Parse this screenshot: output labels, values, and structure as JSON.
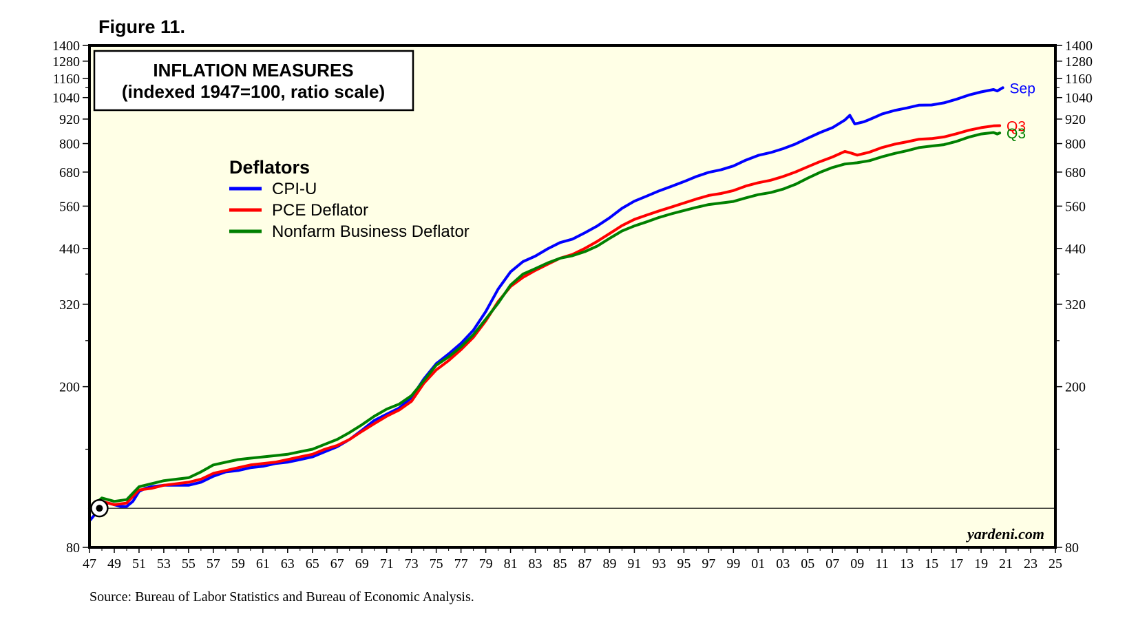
{
  "figure_label": "Figure 11.",
  "source_note": "Source: Bureau of Labor Statistics and Bureau of Economic Analysis.",
  "watermark": "yardeni.com",
  "chart_data": {
    "type": "line",
    "title_lines": [
      "INFLATION MEASURES",
      "(indexed 1947=100, ratio scale)"
    ],
    "legend_title": "Deflators",
    "scale": "log",
    "xlim": [
      1947,
      2025
    ],
    "ylim": [
      80,
      1400
    ],
    "reference_line": 100,
    "base_marker": {
      "x": 1947.8,
      "y": 100
    },
    "y_ticks": [
      {
        "value": 80,
        "label": "80"
      },
      {
        "value": 200,
        "label": "200"
      },
      {
        "value": 320,
        "label": "320"
      },
      {
        "value": 440,
        "label": "440"
      },
      {
        "value": 560,
        "label": "560"
      },
      {
        "value": 680,
        "label": "680"
      },
      {
        "value": 800,
        "label": "800"
      },
      {
        "value": 920,
        "label": "920"
      },
      {
        "value": 1040,
        "label": "1040"
      },
      {
        "value": 1160,
        "label": "1160"
      },
      {
        "value": 1280,
        "label": "1280"
      },
      {
        "value": 1400,
        "label": "1400"
      }
    ],
    "y_minor_ticks": [
      140,
      260,
      380,
      1100
    ],
    "x_ticks": [
      {
        "value": 1947,
        "label": "47"
      },
      {
        "value": 1949,
        "label": "49"
      },
      {
        "value": 1951,
        "label": "51"
      },
      {
        "value": 1953,
        "label": "53"
      },
      {
        "value": 1955,
        "label": "55"
      },
      {
        "value": 1957,
        "label": "57"
      },
      {
        "value": 1959,
        "label": "59"
      },
      {
        "value": 1961,
        "label": "61"
      },
      {
        "value": 1963,
        "label": "63"
      },
      {
        "value": 1965,
        "label": "65"
      },
      {
        "value": 1967,
        "label": "67"
      },
      {
        "value": 1969,
        "label": "69"
      },
      {
        "value": 1971,
        "label": "71"
      },
      {
        "value": 1973,
        "label": "73"
      },
      {
        "value": 1975,
        "label": "75"
      },
      {
        "value": 1977,
        "label": "77"
      },
      {
        "value": 1979,
        "label": "79"
      },
      {
        "value": 1981,
        "label": "81"
      },
      {
        "value": 1983,
        "label": "83"
      },
      {
        "value": 1985,
        "label": "85"
      },
      {
        "value": 1987,
        "label": "87"
      },
      {
        "value": 1989,
        "label": "89"
      },
      {
        "value": 1991,
        "label": "91"
      },
      {
        "value": 1993,
        "label": "93"
      },
      {
        "value": 1995,
        "label": "95"
      },
      {
        "value": 1997,
        "label": "97"
      },
      {
        "value": 1999,
        "label": "99"
      },
      {
        "value": 2001,
        "label": "01"
      },
      {
        "value": 2003,
        "label": "03"
      },
      {
        "value": 2005,
        "label": "05"
      },
      {
        "value": 2007,
        "label": "07"
      },
      {
        "value": 2009,
        "label": "09"
      },
      {
        "value": 2011,
        "label": "11"
      },
      {
        "value": 2013,
        "label": "13"
      },
      {
        "value": 2015,
        "label": "15"
      },
      {
        "value": 2017,
        "label": "17"
      },
      {
        "value": 2019,
        "label": "19"
      },
      {
        "value": 2021,
        "label": "21"
      },
      {
        "value": 2023,
        "label": "23"
      },
      {
        "value": 2025,
        "label": "25"
      }
    ],
    "series": [
      {
        "name": "CPI-U",
        "color": "#0000ff",
        "end_label": "Sep",
        "points": [
          [
            1947.0,
            93
          ],
          [
            1947.5,
            97
          ],
          [
            1948.0,
            101
          ],
          [
            1948.5,
            103
          ],
          [
            1949.0,
            102
          ],
          [
            1949.5,
            101
          ],
          [
            1950.0,
            101
          ],
          [
            1950.5,
            104
          ],
          [
            1951.0,
            110
          ],
          [
            1951.5,
            112
          ],
          [
            1952.0,
            113
          ],
          [
            1953.0,
            114
          ],
          [
            1954.0,
            114
          ],
          [
            1955.0,
            114
          ],
          [
            1956.0,
            116
          ],
          [
            1957.0,
            120
          ],
          [
            1958.0,
            123
          ],
          [
            1959.0,
            124
          ],
          [
            1960.0,
            126
          ],
          [
            1961.0,
            127
          ],
          [
            1962.0,
            129
          ],
          [
            1963.0,
            130
          ],
          [
            1964.0,
            132
          ],
          [
            1965.0,
            134
          ],
          [
            1966.0,
            138
          ],
          [
            1967.0,
            142
          ],
          [
            1968.0,
            148
          ],
          [
            1969.0,
            156
          ],
          [
            1970.0,
            165
          ],
          [
            1971.0,
            171
          ],
          [
            1972.0,
            177
          ],
          [
            1973.0,
            188
          ],
          [
            1974.0,
            209
          ],
          [
            1975.0,
            228
          ],
          [
            1976.0,
            241
          ],
          [
            1977.0,
            256
          ],
          [
            1978.0,
            276
          ],
          [
            1979.0,
            307
          ],
          [
            1980.0,
            349
          ],
          [
            1981.0,
            385
          ],
          [
            1982.0,
            408
          ],
          [
            1983.0,
            421
          ],
          [
            1984.0,
            439
          ],
          [
            1985.0,
            455
          ],
          [
            1986.0,
            464
          ],
          [
            1987.0,
            481
          ],
          [
            1988.0,
            500
          ],
          [
            1989.0,
            524
          ],
          [
            1990.0,
            553
          ],
          [
            1991.0,
            576
          ],
          [
            1992.0,
            593
          ],
          [
            1993.0,
            611
          ],
          [
            1994.0,
            627
          ],
          [
            1995.0,
            644
          ],
          [
            1996.0,
            663
          ],
          [
            1997.0,
            679
          ],
          [
            1998.0,
            689
          ],
          [
            1999.0,
            704
          ],
          [
            2000.0,
            728
          ],
          [
            2001.0,
            748
          ],
          [
            2002.0,
            760
          ],
          [
            2003.0,
            777
          ],
          [
            2004.0,
            798
          ],
          [
            2005.0,
            825
          ],
          [
            2006.0,
            852
          ],
          [
            2007.0,
            876
          ],
          [
            2008.0,
            915
          ],
          [
            2008.4,
            940
          ],
          [
            2008.8,
            895
          ],
          [
            2009.5,
            905
          ],
          [
            2010.0,
            918
          ],
          [
            2011.0,
            947
          ],
          [
            2012.0,
            966
          ],
          [
            2013.0,
            980
          ],
          [
            2014.0,
            996
          ],
          [
            2015.0,
            997
          ],
          [
            2016.0,
            1009
          ],
          [
            2017.0,
            1030
          ],
          [
            2018.0,
            1055
          ],
          [
            2019.0,
            1074
          ],
          [
            2020.0,
            1089
          ],
          [
            2020.3,
            1080
          ],
          [
            2020.75,
            1100
          ]
        ]
      },
      {
        "name": "PCE Deflator",
        "color": "#ff0000",
        "end_label": "Q3",
        "points": [
          [
            1947.0,
            100
          ],
          [
            1948.0,
            104
          ],
          [
            1949.0,
            102
          ],
          [
            1950.0,
            103
          ],
          [
            1951.0,
            111
          ],
          [
            1952.0,
            112
          ],
          [
            1953.0,
            114
          ],
          [
            1954.0,
            115
          ],
          [
            1955.0,
            116
          ],
          [
            1956.0,
            118
          ],
          [
            1957.0,
            122
          ],
          [
            1958.0,
            124
          ],
          [
            1959.0,
            126
          ],
          [
            1960.0,
            128
          ],
          [
            1961.0,
            129
          ],
          [
            1962.0,
            130
          ],
          [
            1963.0,
            132
          ],
          [
            1964.0,
            134
          ],
          [
            1965.0,
            136
          ],
          [
            1966.0,
            140
          ],
          [
            1967.0,
            143
          ],
          [
            1968.0,
            148
          ],
          [
            1969.0,
            155
          ],
          [
            1970.0,
            162
          ],
          [
            1971.0,
            169
          ],
          [
            1972.0,
            175
          ],
          [
            1973.0,
            184
          ],
          [
            1974.0,
            204
          ],
          [
            1975.0,
            220
          ],
          [
            1976.0,
            232
          ],
          [
            1977.0,
            247
          ],
          [
            1978.0,
            265
          ],
          [
            1979.0,
            291
          ],
          [
            1980.0,
            325
          ],
          [
            1981.0,
            354
          ],
          [
            1982.0,
            373
          ],
          [
            1983.0,
            388
          ],
          [
            1984.0,
            402
          ],
          [
            1985.0,
            416
          ],
          [
            1986.0,
            425
          ],
          [
            1987.0,
            440
          ],
          [
            1988.0,
            458
          ],
          [
            1989.0,
            479
          ],
          [
            1990.0,
            501
          ],
          [
            1991.0,
            519
          ],
          [
            1992.0,
            532
          ],
          [
            1993.0,
            545
          ],
          [
            1994.0,
            557
          ],
          [
            1995.0,
            570
          ],
          [
            1996.0,
            583
          ],
          [
            1997.0,
            595
          ],
          [
            1998.0,
            602
          ],
          [
            1999.0,
            612
          ],
          [
            2000.0,
            628
          ],
          [
            2001.0,
            640
          ],
          [
            2002.0,
            649
          ],
          [
            2003.0,
            663
          ],
          [
            2004.0,
            680
          ],
          [
            2005.0,
            701
          ],
          [
            2006.0,
            722
          ],
          [
            2007.0,
            741
          ],
          [
            2008.0,
            765
          ],
          [
            2008.5,
            758
          ],
          [
            2009.0,
            749
          ],
          [
            2010.0,
            762
          ],
          [
            2011.0,
            782
          ],
          [
            2012.0,
            797
          ],
          [
            2013.0,
            808
          ],
          [
            2014.0,
            820
          ],
          [
            2015.0,
            823
          ],
          [
            2016.0,
            831
          ],
          [
            2017.0,
            846
          ],
          [
            2018.0,
            863
          ],
          [
            2019.0,
            876
          ],
          [
            2020.0,
            885
          ],
          [
            2020.5,
            886
          ]
        ]
      },
      {
        "name": "Nonfarm Business Deflator",
        "color": "#008000",
        "end_label": "Q3",
        "points": [
          [
            1947.0,
            100
          ],
          [
            1948.0,
            106
          ],
          [
            1949.0,
            104
          ],
          [
            1950.0,
            105
          ],
          [
            1951.0,
            113
          ],
          [
            1952.0,
            115
          ],
          [
            1953.0,
            117
          ],
          [
            1954.0,
            118
          ],
          [
            1955.0,
            119
          ],
          [
            1956.0,
            123
          ],
          [
            1957.0,
            128
          ],
          [
            1958.0,
            130
          ],
          [
            1959.0,
            132
          ],
          [
            1960.0,
            133
          ],
          [
            1961.0,
            134
          ],
          [
            1962.0,
            135
          ],
          [
            1963.0,
            136
          ],
          [
            1964.0,
            138
          ],
          [
            1965.0,
            140
          ],
          [
            1966.0,
            144
          ],
          [
            1967.0,
            148
          ],
          [
            1968.0,
            154
          ],
          [
            1969.0,
            161
          ],
          [
            1970.0,
            169
          ],
          [
            1971.0,
            176
          ],
          [
            1972.0,
            181
          ],
          [
            1973.0,
            190
          ],
          [
            1974.0,
            207
          ],
          [
            1975.0,
            226
          ],
          [
            1976.0,
            237
          ],
          [
            1977.0,
            251
          ],
          [
            1978.0,
            269
          ],
          [
            1979.0,
            294
          ],
          [
            1980.0,
            322
          ],
          [
            1981.0,
            357
          ],
          [
            1982.0,
            380
          ],
          [
            1983.0,
            392
          ],
          [
            1984.0,
            405
          ],
          [
            1985.0,
            416
          ],
          [
            1986.0,
            422
          ],
          [
            1987.0,
            432
          ],
          [
            1988.0,
            446
          ],
          [
            1989.0,
            466
          ],
          [
            1990.0,
            486
          ],
          [
            1991.0,
            500
          ],
          [
            1992.0,
            512
          ],
          [
            1993.0,
            525
          ],
          [
            1994.0,
            536
          ],
          [
            1995.0,
            546
          ],
          [
            1996.0,
            556
          ],
          [
            1997.0,
            565
          ],
          [
            1998.0,
            570
          ],
          [
            1999.0,
            575
          ],
          [
            2000.0,
            587
          ],
          [
            2001.0,
            598
          ],
          [
            2002.0,
            605
          ],
          [
            2003.0,
            617
          ],
          [
            2004.0,
            634
          ],
          [
            2005.0,
            657
          ],
          [
            2006.0,
            679
          ],
          [
            2007.0,
            698
          ],
          [
            2008.0,
            712
          ],
          [
            2009.0,
            717
          ],
          [
            2010.0,
            726
          ],
          [
            2011.0,
            742
          ],
          [
            2012.0,
            756
          ],
          [
            2013.0,
            768
          ],
          [
            2014.0,
            782
          ],
          [
            2015.0,
            789
          ],
          [
            2016.0,
            795
          ],
          [
            2017.0,
            810
          ],
          [
            2018.0,
            830
          ],
          [
            2019.0,
            845
          ],
          [
            2020.0,
            852
          ],
          [
            2020.3,
            845
          ],
          [
            2020.5,
            850
          ]
        ]
      }
    ]
  }
}
